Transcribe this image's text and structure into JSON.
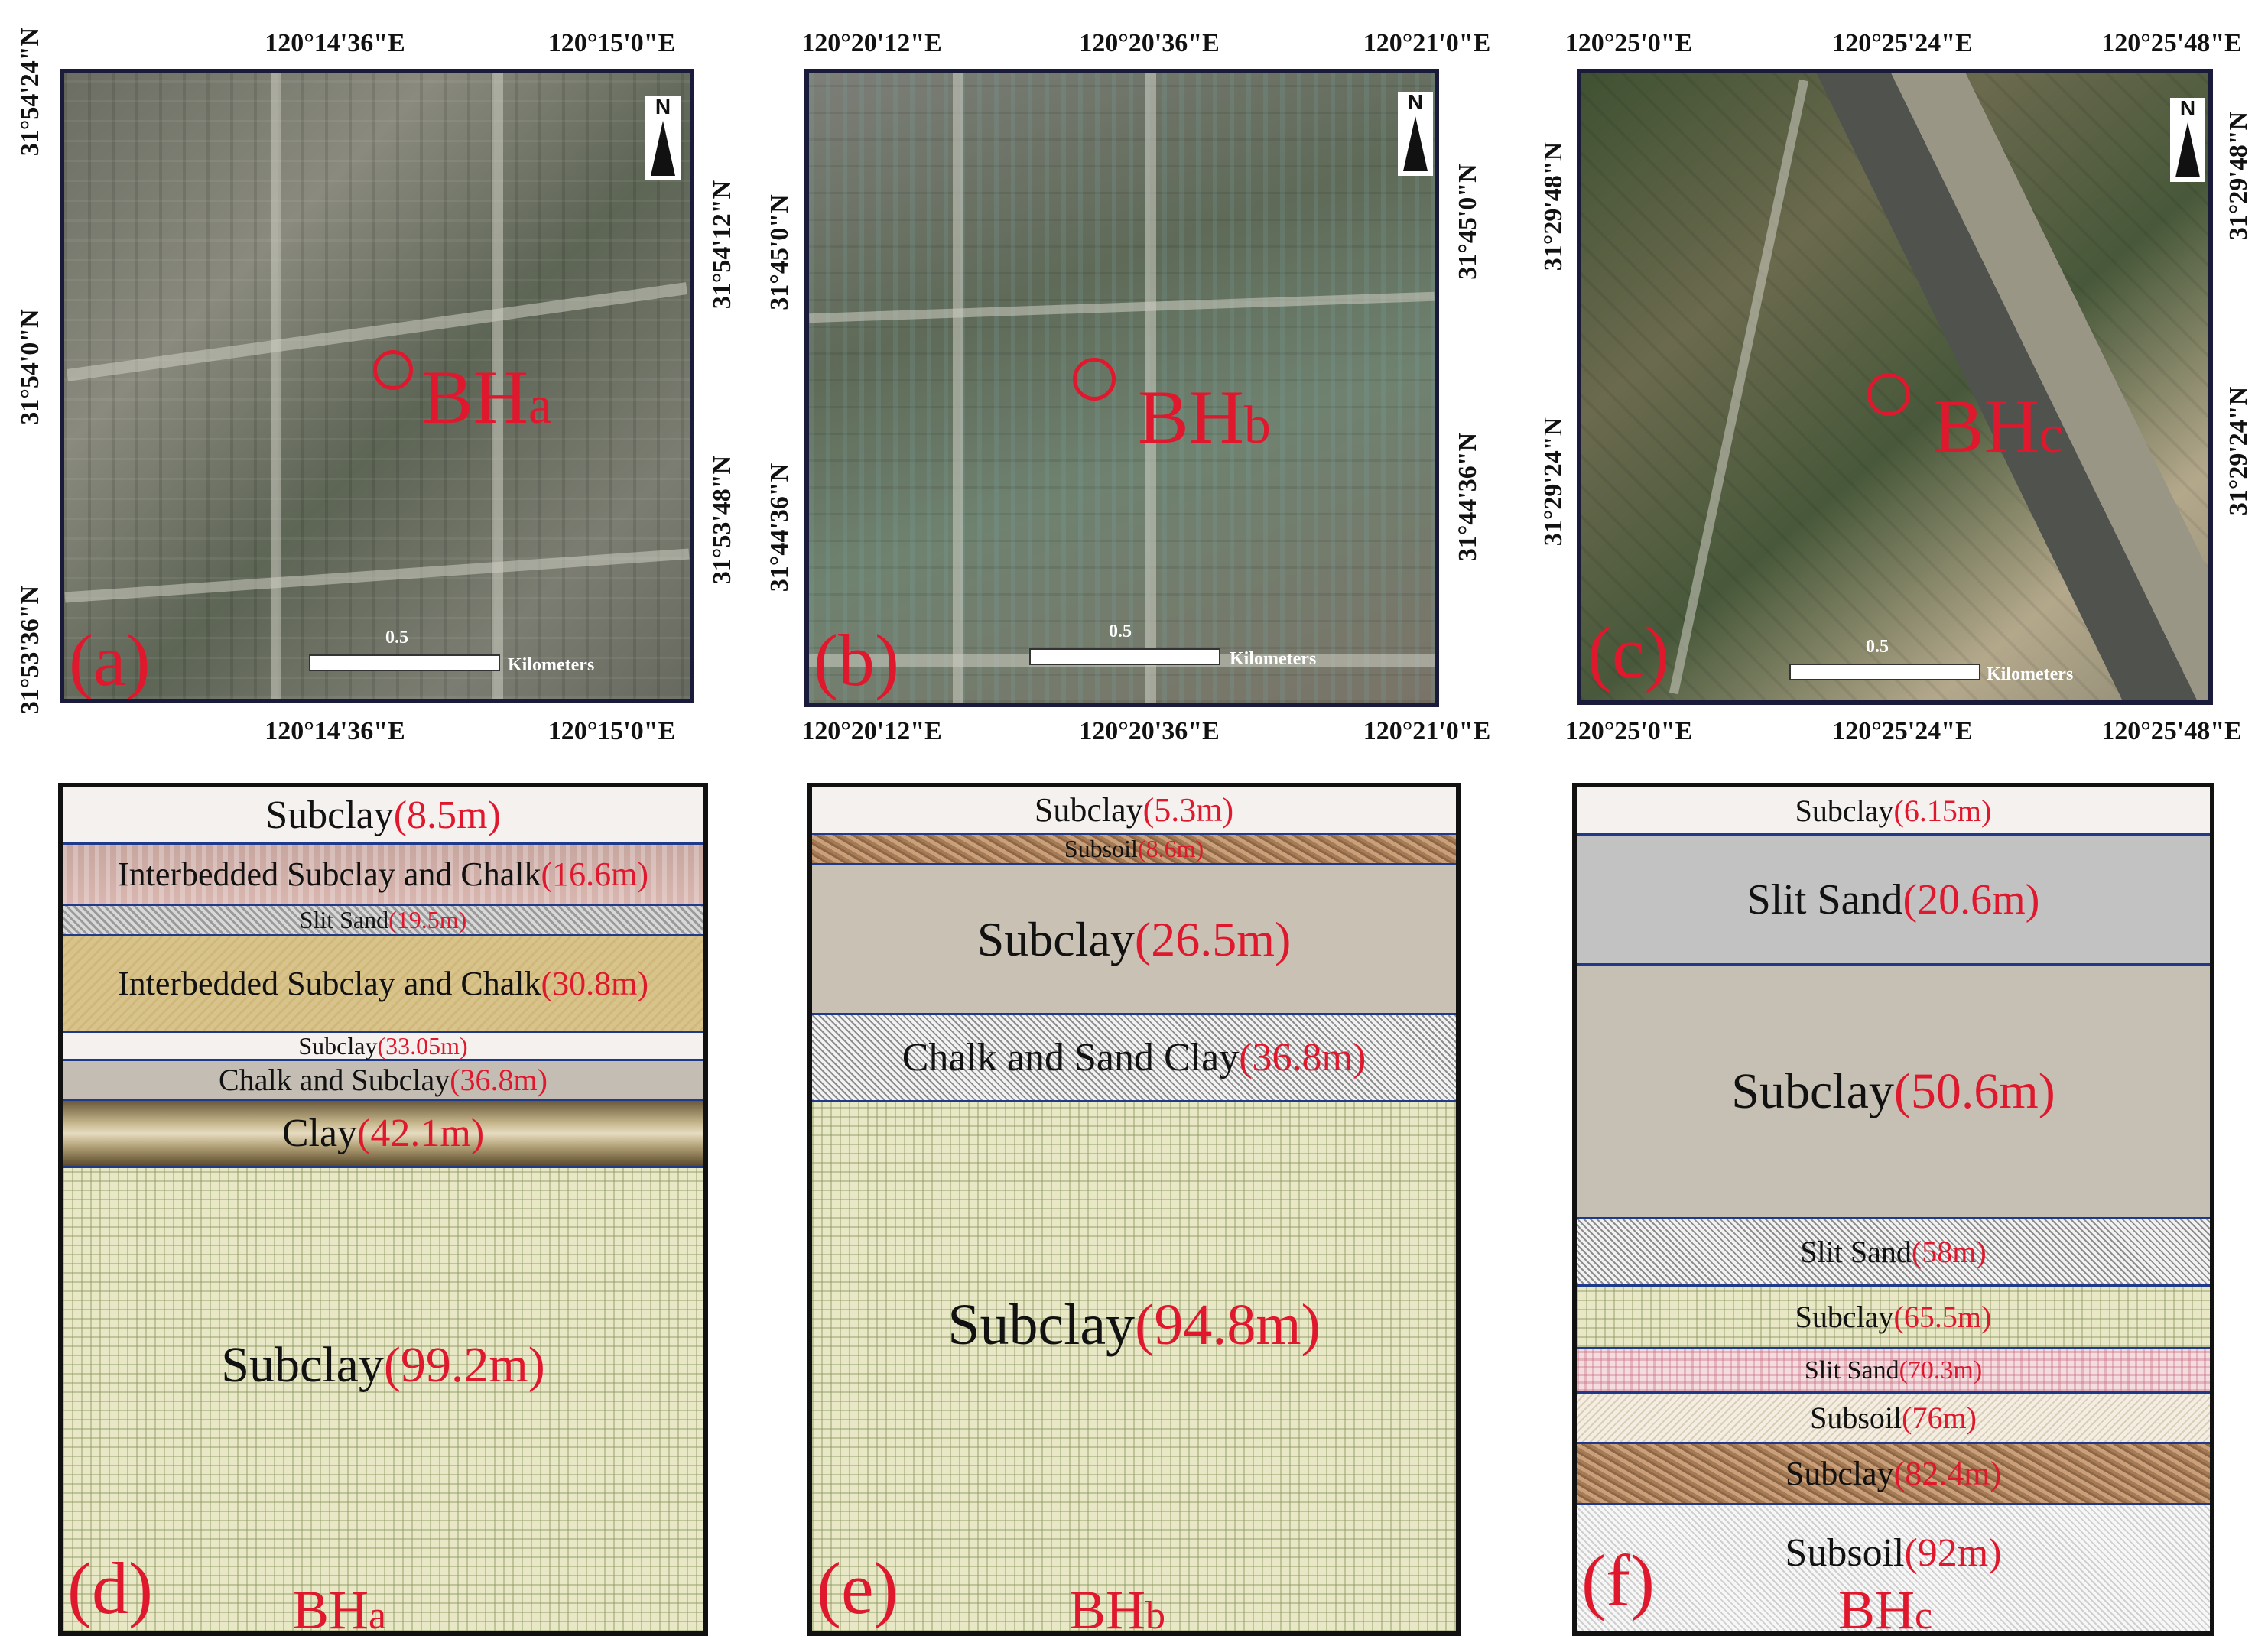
{
  "maps": [
    {
      "id": "a",
      "letter": "(a)",
      "borehole": {
        "prefix": "BH",
        "suffix": "a"
      },
      "top_lon": [
        "120°14'36\"E",
        "120°15'0\"E"
      ],
      "bottom_lon": [
        "120°14'36\"E",
        "120°15'0\"E"
      ],
      "left_lat": [
        "31°54'24\"N",
        "31°54'0\"N",
        "31°53'36\"N"
      ],
      "right_lat": [
        "31°54'12\"N",
        "31°53'48\"N"
      ],
      "north": "N",
      "scale_value": "0.5",
      "scale_unit": "Kilometers"
    },
    {
      "id": "b",
      "letter": "(b)",
      "borehole": {
        "prefix": "BH",
        "suffix": "b"
      },
      "top_lon": [
        "120°20'12\"E",
        "120°20'36\"E",
        "120°21'0\"E"
      ],
      "bottom_lon": [
        "120°20'12\"E",
        "120°20'36\"E",
        "120°21'0\"E"
      ],
      "left_lat": [
        "31°45'0\"N",
        "31°44'36\"N"
      ],
      "right_lat": [
        "31°45'0\"N",
        "31°44'36\"N"
      ],
      "north": "N",
      "scale_value": "0.5",
      "scale_unit": "Kilometers"
    },
    {
      "id": "c",
      "letter": "(c)",
      "borehole": {
        "prefix": "BH",
        "suffix": "c"
      },
      "top_lon": [
        "120°25'0\"E",
        "120°25'24\"E",
        "120°25'48\"E"
      ],
      "bottom_lon": [
        "120°25'0\"E",
        "120°25'24\"E",
        "120°25'48\"E"
      ],
      "left_lat": [
        "31°29'48\"N",
        "31°29'24\"N"
      ],
      "right_lat": [
        "31°29'48\"N",
        "31°29'24\"N"
      ],
      "north": "N",
      "scale_value": "0.5",
      "scale_unit": "Kilometers"
    }
  ],
  "columns": [
    {
      "id": "d",
      "letter": "(d)",
      "borehole": {
        "prefix": "BH",
        "suffix": "a"
      },
      "layers": [
        {
          "name": "Subclay",
          "depth": "(8.5m)",
          "pattern": "p-white"
        },
        {
          "name": "Interbedded Subclay and Chalk",
          "depth": "(16.6m)",
          "pattern": "p-pink"
        },
        {
          "name": "Slit Sand",
          "depth": "(19.5m)",
          "pattern": "p-gravel"
        },
        {
          "name": "Interbedded Subclay and Chalk",
          "depth": "(30.8m)",
          "pattern": "p-sand"
        },
        {
          "name": "Subclay",
          "depth": "(33.05m)",
          "pattern": "p-white"
        },
        {
          "name": "Chalk and Subclay",
          "depth": "(36.8m)",
          "pattern": "p-grey"
        },
        {
          "name": "Clay",
          "depth": "(42.1m)",
          "pattern": "p-clay"
        },
        {
          "name": "Subclay ",
          "depth": "(99.2m)",
          "pattern": "p-grid"
        }
      ]
    },
    {
      "id": "e",
      "letter": "(e)",
      "borehole": {
        "prefix": "BH",
        "suffix": "b"
      },
      "layers": [
        {
          "name": "Subclay",
          "depth": "(5.3m)",
          "pattern": "p-white"
        },
        {
          "name": "Subsoil",
          "depth": "(8.6m)",
          "pattern": "p-soil"
        },
        {
          "name": "Subclay",
          "depth": "(26.5m)",
          "pattern": "p-beige"
        },
        {
          "name": "Chalk and Sand Clay",
          "depth": "(36.8m)",
          "pattern": "p-dots"
        },
        {
          "name": "Subclay ",
          "depth": "(94.8m)",
          "pattern": "p-grid"
        }
      ]
    },
    {
      "id": "f",
      "letter": "(f)",
      "borehole": {
        "prefix": "BH",
        "suffix": "c"
      },
      "layers": [
        {
          "name": "Subclay ",
          "depth": "(6.15m)",
          "pattern": "p-white"
        },
        {
          "name": "Slit Sand ",
          "depth": "(20.6m)",
          "pattern": "p-slate"
        },
        {
          "name": "Subclay ",
          "depth": "(50.6m)",
          "pattern": "p-stone"
        },
        {
          "name": "Slit Sand ",
          "depth": "(58m)",
          "pattern": "p-dots"
        },
        {
          "name": "Subclay ",
          "depth": "(65.5m)",
          "pattern": "p-grid"
        },
        {
          "name": "Slit Sand ",
          "depth": "(70.3m)",
          "pattern": "p-plaid"
        },
        {
          "name": "Subsoil ",
          "depth": "(76m)",
          "pattern": "p-hatch"
        },
        {
          "name": "Subclay ",
          "depth": "(82.4m)",
          "pattern": "p-soil"
        },
        {
          "name": "Subsoil ",
          "depth": "(92m)",
          "pattern": "p-pale"
        }
      ]
    }
  ],
  "colors": {
    "label_red": "#e0182d",
    "layer_border": "#1f3a8a",
    "frame": "#111111"
  }
}
